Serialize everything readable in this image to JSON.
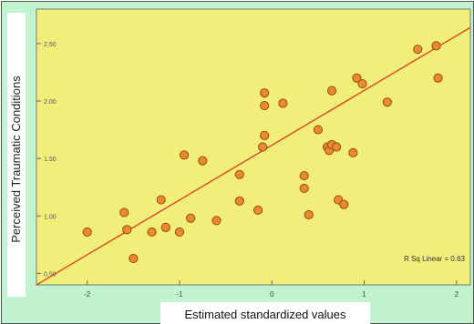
{
  "chart_data": {
    "type": "scatter",
    "xlabel": "Estimated standardized values",
    "ylabel": "Perceived Traumatic Conditions",
    "xlim": [
      -2.55,
      2.15
    ],
    "ylim": [
      0.4,
      2.8
    ],
    "x_ticks": [
      -2,
      -1,
      0,
      1,
      2
    ],
    "y_ticks": [
      0.5,
      1.0,
      1.5,
      2.0,
      2.5
    ],
    "x_tick_labels": [
      "-2",
      "-1",
      "0",
      "1",
      "2"
    ],
    "y_tick_labels": [
      "0.50",
      "1.00",
      "1.50",
      "2.00",
      "2.50"
    ],
    "annotation": "R Sq Linear = 0.63",
    "fit_line": {
      "x": [
        -2.55,
        2.15
      ],
      "y": [
        0.4,
        2.64
      ]
    },
    "points": [
      {
        "x": -2.0,
        "y": 0.86
      },
      {
        "x": -1.6,
        "y": 1.03
      },
      {
        "x": -1.57,
        "y": 0.88
      },
      {
        "x": -1.5,
        "y": 0.63
      },
      {
        "x": -1.3,
        "y": 0.86
      },
      {
        "x": -1.2,
        "y": 1.14
      },
      {
        "x": -1.15,
        "y": 0.9
      },
      {
        "x": -1.0,
        "y": 0.86
      },
      {
        "x": -0.95,
        "y": 1.53
      },
      {
        "x": -0.88,
        "y": 0.98
      },
      {
        "x": -0.75,
        "y": 1.48
      },
      {
        "x": -0.6,
        "y": 0.96
      },
      {
        "x": -0.35,
        "y": 1.36
      },
      {
        "x": -0.35,
        "y": 1.13
      },
      {
        "x": -0.15,
        "y": 1.05
      },
      {
        "x": -0.08,
        "y": 2.07
      },
      {
        "x": -0.08,
        "y": 1.96
      },
      {
        "x": -0.08,
        "y": 1.7
      },
      {
        "x": -0.1,
        "y": 1.6
      },
      {
        "x": 0.12,
        "y": 1.98
      },
      {
        "x": 0.35,
        "y": 1.35
      },
      {
        "x": 0.35,
        "y": 1.24
      },
      {
        "x": 0.4,
        "y": 1.01
      },
      {
        "x": 0.5,
        "y": 1.75
      },
      {
        "x": 0.6,
        "y": 1.6
      },
      {
        "x": 0.62,
        "y": 1.57
      },
      {
        "x": 0.65,
        "y": 1.62
      },
      {
        "x": 0.7,
        "y": 1.6
      },
      {
        "x": 0.65,
        "y": 2.09
      },
      {
        "x": 0.72,
        "y": 1.14
      },
      {
        "x": 0.78,
        "y": 1.1
      },
      {
        "x": 0.88,
        "y": 1.55
      },
      {
        "x": 0.92,
        "y": 2.2
      },
      {
        "x": 0.98,
        "y": 2.15
      },
      {
        "x": 1.25,
        "y": 1.99
      },
      {
        "x": 1.58,
        "y": 2.45
      },
      {
        "x": 1.78,
        "y": 2.48
      },
      {
        "x": 1.8,
        "y": 2.2
      }
    ]
  },
  "colors": {
    "frame_bg": "#c2f3cf",
    "plot_bg": "#f2ee7a",
    "point_fill": "#e98a33",
    "point_stroke": "#9b4a12",
    "fit_line": "#d93a1e"
  }
}
